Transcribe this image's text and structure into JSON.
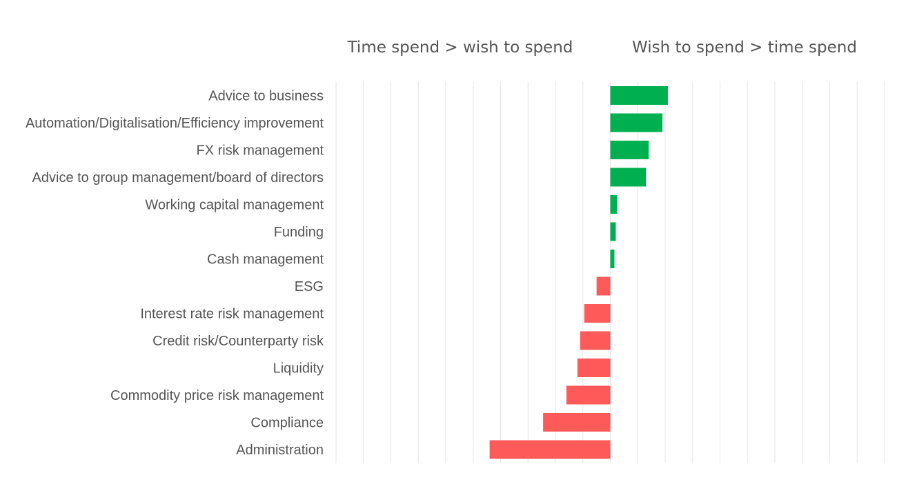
{
  "chart_data": {
    "type": "bar",
    "orientation": "horizontal",
    "title": "",
    "xlabel": "",
    "ylabel": "",
    "headers": {
      "left": "Time spend > wish to spend",
      "right": "Wish to spend > time spend"
    },
    "categories": [
      "Advice to business",
      "Automation/Digitalisation/Efficiency improvement",
      "FX risk management",
      "Advice to group management/board of directors",
      "Working capital management",
      "Funding",
      "Cash management",
      "ESG",
      "Interest rate risk management",
      "Credit risk/Counterparty risk",
      "Liquidity",
      "Commodity price risk management",
      "Compliance",
      "Administration"
    ],
    "values": [
      2.1,
      1.9,
      1.4,
      1.3,
      0.25,
      0.2,
      0.15,
      -0.5,
      -0.95,
      -1.1,
      -1.2,
      -1.6,
      -2.45,
      -4.4
    ],
    "xlim": [
      -10,
      10
    ],
    "grid": true,
    "legend": "none",
    "colors": {
      "positive": "#00b050",
      "negative": "#ff5a5a",
      "grid": "#e6e6e6",
      "text": "#555555"
    }
  }
}
